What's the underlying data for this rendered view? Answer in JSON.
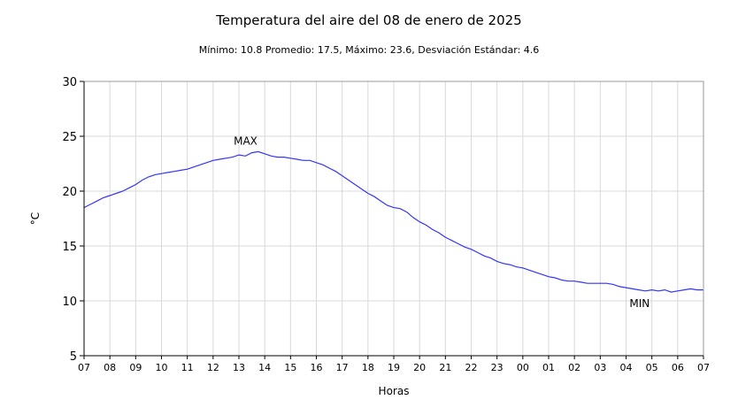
{
  "chart_data": {
    "type": "line",
    "title": "Temperatura del aire del 08 de enero de 2025",
    "subtitle": "Mínimo: 10.8 Promedio: 17.5, Máximo: 23.6, Desviación Estándar: 4.6",
    "xlabel": "Horas",
    "ylabel": "°C",
    "ylim": [
      5,
      30
    ],
    "yticks": [
      5,
      10,
      15,
      20,
      25,
      30
    ],
    "xticks": [
      "07",
      "08",
      "09",
      "10",
      "11",
      "12",
      "13",
      "14",
      "15",
      "16",
      "17",
      "18",
      "19",
      "20",
      "21",
      "22",
      "23",
      "00",
      "01",
      "02",
      "03",
      "04",
      "05",
      "06",
      "07"
    ],
    "grid": true,
    "line_color": "#3333ff",
    "annotations": [
      {
        "text": "MAX",
        "x": 13.6,
        "y": 23.6
      },
      {
        "text": "MIN",
        "x": 28.8,
        "y": 10.8
      }
    ],
    "series": [
      {
        "x": [
          7.0,
          7.25,
          7.5,
          7.75,
          8.0,
          8.25,
          8.5,
          8.75,
          9.0,
          9.25,
          9.5,
          9.75,
          10.0,
          10.25,
          10.5,
          10.75,
          11.0,
          11.25,
          11.5,
          11.75,
          12.0,
          12.25,
          12.5,
          12.75,
          13.0,
          13.25,
          13.5,
          13.75,
          14.0,
          14.25,
          14.5,
          14.75,
          15.0,
          15.25,
          15.5,
          15.75,
          16.0,
          16.25,
          16.5,
          16.75,
          17.0,
          17.25,
          17.5,
          17.75,
          18.0,
          18.25,
          18.5,
          18.75,
          19.0,
          19.25,
          19.5,
          19.75,
          20.0,
          20.25,
          20.5,
          20.75,
          21.0,
          21.25,
          21.5,
          21.75,
          22.0,
          22.25,
          22.5,
          22.75,
          23.0,
          23.25,
          23.5,
          23.75,
          24.0,
          24.25,
          24.5,
          24.75,
          25.0,
          25.25,
          25.5,
          25.75,
          26.0,
          26.25,
          26.5,
          26.75,
          27.0,
          27.25,
          27.5,
          27.75,
          28.0,
          28.25,
          28.5,
          28.75,
          29.0,
          29.25,
          29.5,
          29.75,
          30.0,
          30.25,
          30.5,
          30.75,
          31.0
        ],
        "y": [
          18.5,
          18.8,
          19.1,
          19.4,
          19.6,
          19.8,
          20.0,
          20.3,
          20.6,
          21.0,
          21.3,
          21.5,
          21.6,
          21.7,
          21.8,
          21.9,
          22.0,
          22.2,
          22.4,
          22.6,
          22.8,
          22.9,
          23.0,
          23.1,
          23.3,
          23.2,
          23.5,
          23.6,
          23.4,
          23.2,
          23.1,
          23.1,
          23.0,
          22.9,
          22.8,
          22.8,
          22.6,
          22.4,
          22.1,
          21.8,
          21.4,
          21.0,
          20.6,
          20.2,
          19.8,
          19.5,
          19.1,
          18.7,
          18.5,
          18.4,
          18.1,
          17.6,
          17.2,
          16.9,
          16.5,
          16.2,
          15.8,
          15.5,
          15.2,
          14.9,
          14.7,
          14.4,
          14.1,
          13.9,
          13.6,
          13.4,
          13.3,
          13.1,
          13.0,
          12.8,
          12.6,
          12.4,
          12.2,
          12.1,
          11.9,
          11.8,
          11.8,
          11.7,
          11.6,
          11.6,
          11.6,
          11.6,
          11.5,
          11.3,
          11.2,
          11.1,
          11.0,
          10.9,
          11.0,
          10.9,
          11.0,
          10.8,
          10.9,
          11.0,
          11.1,
          11.0,
          11.0
        ]
      }
    ]
  }
}
